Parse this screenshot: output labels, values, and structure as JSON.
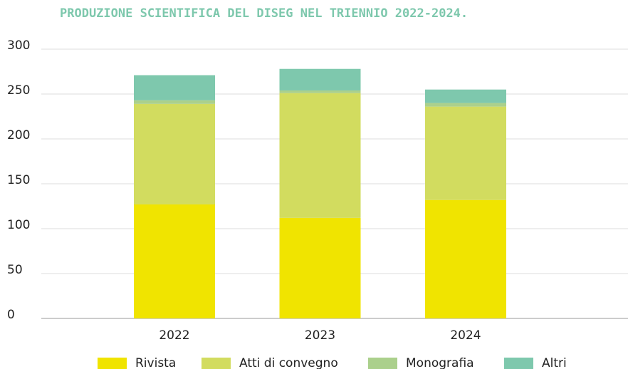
{
  "chart_data": {
    "type": "stacked_bar",
    "title": "PRODUZIONE SCIENTIFICA DEL DISEG NEL TRIENNIO 2022-2024.",
    "categories": [
      "2022",
      "2023",
      "2024"
    ],
    "series": [
      {
        "name": "Rivista",
        "color": "#f0e400",
        "values": [
          127,
          112,
          132
        ]
      },
      {
        "name": "Atti di convegno",
        "color": "#d2dc5f",
        "values": [
          112,
          139,
          104
        ]
      },
      {
        "name": "Monografia",
        "color": "#abd08c",
        "values": [
          4,
          3,
          4
        ]
      },
      {
        "name": "Altri",
        "color": "#7ec8ad",
        "values": [
          28,
          24,
          15
        ]
      }
    ],
    "ylim": [
      0,
      300
    ],
    "yticks": [
      0,
      50,
      100,
      150,
      200,
      250,
      300
    ],
    "grid": true,
    "legend": "bottom"
  }
}
